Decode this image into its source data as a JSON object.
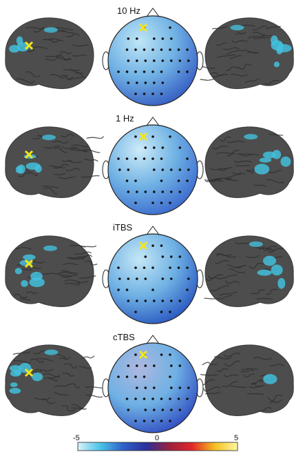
{
  "panels": [
    {
      "label": "10 Hz",
      "left_brain": {
        "cyan_level": 0.3
      },
      "right_brain": {
        "cyan_level": 0.6
      },
      "topo": {
        "base": "#3a63c6",
        "light": "#bfe6f6"
      }
    },
    {
      "label": "1 Hz",
      "left_brain": {
        "cyan_level": 0.45
      },
      "right_brain": {
        "cyan_level": 0.45
      },
      "topo": {
        "base": "#3f6fd0",
        "light": "#cdebf8"
      }
    },
    {
      "label": "iTBS",
      "left_brain": {
        "cyan_level": 0.55
      },
      "right_brain": {
        "cyan_level": 0.4
      },
      "topo": {
        "base": "#2f5fc4",
        "light": "#c4e7f6"
      }
    },
    {
      "label": "cTBS",
      "left_brain": {
        "cyan_level": 0.7
      },
      "right_brain": {
        "cyan_level": 0.05
      },
      "topo": {
        "base": "#3556c4",
        "light": "#aeb8e0"
      }
    }
  ],
  "colorbar": {
    "min_label": "-5",
    "mid_label": "0",
    "max_label": "5",
    "stops": [
      "#d9f1fb",
      "#49c3e6",
      "#2f5fc8",
      "#2b2f9a",
      "#9a2040",
      "#e2262a",
      "#f4c020",
      "#fff7a0"
    ]
  },
  "colors": {
    "cortex": "#4d4d4d",
    "cortex_dark": "#2e2e2e",
    "cyan": "#43bfdc",
    "marker": "#f2e51b"
  }
}
